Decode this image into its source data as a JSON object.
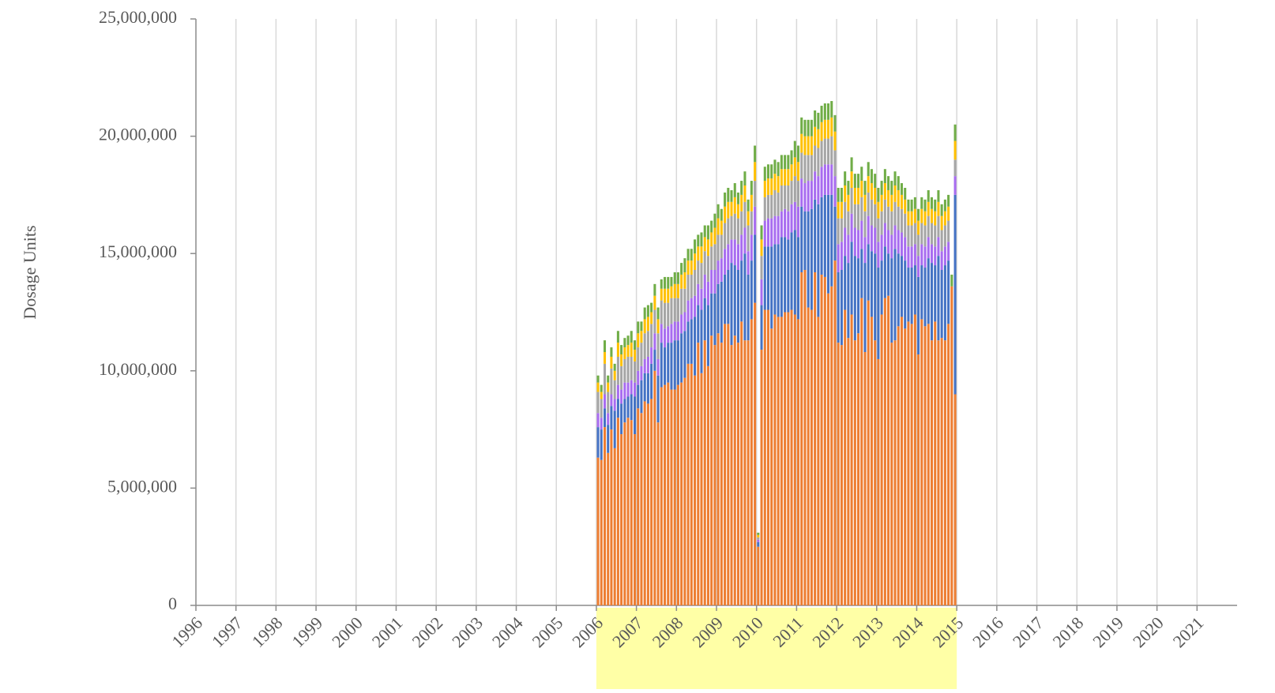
{
  "chart_data": {
    "type": "stacked_bar",
    "y_label": "Dosage Units",
    "xlim": [
      1996,
      2022
    ],
    "xticks": [
      1996,
      1997,
      1998,
      1999,
      2000,
      2001,
      2002,
      2003,
      2004,
      2005,
      2006,
      2007,
      2008,
      2009,
      2010,
      2011,
      2012,
      2013,
      2014,
      2015,
      2016,
      2017,
      2018,
      2019,
      2020,
      2021
    ],
    "ylim": [
      0,
      25000000
    ],
    "yticks": [
      0,
      {
        "value": 5000000,
        "label": "5,000,000"
      },
      {
        "value": 10000000,
        "label": "10,000,000"
      },
      {
        "value": 15000000,
        "label": "15,000,000"
      },
      {
        "value": 20000000,
        "label": "20,000,000"
      },
      {
        "value": 25000000,
        "label": "25,000,000"
      }
    ],
    "grid": true,
    "highlight_range": [
      2006,
      2015
    ],
    "highlight_color": "#ffffa6",
    "x": [
      2006,
      2006.083,
      2006.167,
      2006.25,
      2006.333,
      2006.417,
      2006.5,
      2006.583,
      2006.667,
      2006.75,
      2006.833,
      2006.917,
      2007,
      2007.083,
      2007.167,
      2007.25,
      2007.333,
      2007.417,
      2007.5,
      2007.583,
      2007.667,
      2007.75,
      2007.833,
      2007.917,
      2008,
      2008.083,
      2008.167,
      2008.25,
      2008.333,
      2008.417,
      2008.5,
      2008.583,
      2008.667,
      2008.75,
      2008.833,
      2008.917,
      2009,
      2009.083,
      2009.167,
      2009.25,
      2009.333,
      2009.417,
      2009.5,
      2009.583,
      2009.667,
      2009.75,
      2009.833,
      2009.917,
      2010,
      2010.083,
      2010.167,
      2010.25,
      2010.333,
      2010.417,
      2010.5,
      2010.583,
      2010.667,
      2010.75,
      2010.833,
      2010.917,
      2011,
      2011.083,
      2011.167,
      2011.25,
      2011.333,
      2011.417,
      2011.5,
      2011.583,
      2011.667,
      2011.75,
      2011.833,
      2011.917,
      2012,
      2012.083,
      2012.167,
      2012.25,
      2012.333,
      2012.417,
      2012.5,
      2012.583,
      2012.667,
      2012.75,
      2012.833,
      2012.917,
      2013,
      2013.083,
      2013.167,
      2013.25,
      2013.333,
      2013.417,
      2013.5,
      2013.583,
      2013.667,
      2013.75,
      2013.833,
      2013.917,
      2014,
      2014.083,
      2014.167,
      2014.25,
      2014.333,
      2014.417,
      2014.5,
      2014.583,
      2014.667,
      2014.75,
      2014.833,
      2014.917
    ],
    "series": [
      {
        "color": "#ed7d31",
        "values": [
          6300000,
          6200000,
          7600000,
          6500000,
          7500000,
          6700000,
          8000000,
          7300000,
          7800000,
          8000000,
          7900000,
          7300000,
          8400000,
          8200000,
          8700000,
          8600000,
          8800000,
          10000000,
          7800000,
          9300000,
          9400000,
          9500000,
          9200000,
          9200000,
          9400000,
          9500000,
          9700000,
          10300000,
          10300000,
          9800000,
          11200000,
          9900000,
          11300000,
          10200000,
          11500000,
          11100000,
          11600000,
          11200000,
          12000000,
          12000000,
          11100000,
          11500000,
          11200000,
          12100000,
          11300000,
          11300000,
          12200000,
          12900000,
          2500000,
          10900000,
          12600000,
          12600000,
          11800000,
          12400000,
          12300000,
          12300000,
          12500000,
          12500000,
          12600000,
          12400000,
          12200000,
          14200000,
          14300000,
          12700000,
          12600000,
          14200000,
          12300000,
          14100000,
          14000000,
          13300000,
          13600000,
          14700000,
          11200000,
          11100000,
          12600000,
          11400000,
          12400000,
          11300000,
          11600000,
          13100000,
          10800000,
          13000000,
          12300000,
          11300000,
          10500000,
          12400000,
          13100000,
          13200000,
          11200000,
          11300000,
          11900000,
          12300000,
          11800000,
          12100000,
          12000000,
          12400000,
          10700000,
          12200000,
          11900000,
          12000000,
          11300000,
          12100000,
          11300000,
          11400000,
          11300000,
          12000000,
          13600000,
          9000000
        ]
      },
      {
        "color": "#4472c4",
        "values": [
          1300000,
          1300000,
          800000,
          1200000,
          1000000,
          1600000,
          800000,
          1300000,
          1000000,
          900000,
          1100000,
          1600000,
          1000000,
          1400000,
          1200000,
          1300000,
          1500000,
          900000,
          2000000,
          1900000,
          1600000,
          1700000,
          2000000,
          2100000,
          1900000,
          2100000,
          2000000,
          1800000,
          1900000,
          2500000,
          1600000,
          2700000,
          1800000,
          2600000,
          1800000,
          2200000,
          2100000,
          2600000,
          2100000,
          2300000,
          3500000,
          3000000,
          3100000,
          2600000,
          3700000,
          2800000,
          2500000,
          2900000,
          200000,
          1900000,
          2700000,
          2700000,
          3500000,
          3000000,
          3100000,
          3400000,
          3200000,
          3100000,
          3300000,
          3600000,
          3500000,
          2800000,
          2500000,
          4100000,
          4300000,
          3100000,
          4800000,
          3300000,
          3500000,
          4200000,
          3900000,
          2300000,
          3000000,
          3200000,
          2300000,
          3200000,
          3100000,
          3600000,
          3200000,
          2100000,
          3800000,
          2400000,
          2800000,
          3700000,
          3900000,
          2300000,
          2200000,
          1800000,
          3600000,
          3900000,
          3100000,
          2600000,
          2900000,
          2300000,
          2400000,
          2100000,
          3300000,
          2300000,
          2500000,
          2800000,
          3300000,
          2400000,
          3600000,
          2900000,
          3200000,
          2700000,
          0,
          8500000
        ]
      },
      {
        "color": "#a86cf0",
        "values": [
          600000,
          500000,
          600000,
          500000,
          500000,
          500000,
          600000,
          600000,
          700000,
          600000,
          600000,
          600000,
          600000,
          600000,
          600000,
          700000,
          700000,
          700000,
          700000,
          800000,
          800000,
          700000,
          800000,
          800000,
          800000,
          800000,
          800000,
          900000,
          900000,
          900000,
          900000,
          900000,
          1000000,
          1000000,
          1000000,
          1000000,
          1000000,
          1000000,
          1100000,
          1100000,
          1000000,
          1100000,
          1100000,
          1100000,
          1100000,
          1000000,
          1100000,
          1200000,
          100000,
          1100000,
          1100000,
          1200000,
          1200000,
          1200000,
          1200000,
          1100000,
          1200000,
          1200000,
          1200000,
          1200000,
          1300000,
          1200000,
          1200000,
          1300000,
          1200000,
          1200000,
          1200000,
          1300000,
          1300000,
          1300000,
          1300000,
          1300000,
          1200000,
          1200000,
          1200000,
          1200000,
          1200000,
          1200000,
          1200000,
          1200000,
          1100000,
          1200000,
          1100000,
          1100000,
          1100000,
          1100000,
          1000000,
          1000000,
          1000000,
          1000000,
          1000000,
          1000000,
          1000000,
          900000,
          900000,
          900000,
          900000,
          900000,
          900000,
          900000,
          800000,
          800000,
          800000,
          800000,
          800000,
          800000,
          0,
          800000
        ]
      },
      {
        "color": "#a5a5a5",
        "values": [
          900000,
          800000,
          1300000,
          900000,
          1100000,
          800000,
          1200000,
          1000000,
          1000000,
          1100000,
          1000000,
          900000,
          1000000,
          1000000,
          1100000,
          1100000,
          1000000,
          1000000,
          1100000,
          1000000,
          1100000,
          1000000,
          1100000,
          1000000,
          1000000,
          1100000,
          1000000,
          1100000,
          1000000,
          1100000,
          1000000,
          1100000,
          1000000,
          1100000,
          1000000,
          1100000,
          1100000,
          1000000,
          1100000,
          1100000,
          1000000,
          1100000,
          1100000,
          1000000,
          1100000,
          1100000,
          1000000,
          1100000,
          100000,
          1000000,
          1000000,
          1000000,
          1000000,
          1100000,
          1000000,
          1100000,
          1000000,
          1100000,
          1000000,
          1100000,
          1100000,
          1100000,
          1200000,
          1100000,
          1100000,
          1100000,
          1200000,
          1100000,
          1100000,
          1100000,
          1200000,
          1100000,
          1100000,
          1000000,
          1100000,
          1000000,
          1100000,
          1000000,
          1100000,
          1000000,
          1100000,
          1000000,
          1100000,
          1000000,
          1000000,
          1000000,
          1000000,
          1000000,
          1000000,
          1000000,
          1000000,
          1000000,
          1000000,
          900000,
          900000,
          900000,
          900000,
          900000,
          900000,
          900000,
          900000,
          900000,
          900000,
          900000,
          900000,
          900000,
          0,
          700000
        ]
      },
      {
        "color": "#ffc000",
        "values": [
          400000,
          300000,
          500000,
          400000,
          500000,
          400000,
          600000,
          500000,
          500000,
          500000,
          600000,
          500000,
          600000,
          500000,
          600000,
          600000,
          500000,
          600000,
          600000,
          500000,
          600000,
          600000,
          500000,
          600000,
          600000,
          600000,
          700000,
          600000,
          600000,
          700000,
          600000,
          700000,
          600000,
          700000,
          600000,
          700000,
          700000,
          600000,
          700000,
          700000,
          600000,
          700000,
          600000,
          700000,
          700000,
          600000,
          700000,
          800000,
          100000,
          700000,
          700000,
          700000,
          700000,
          700000,
          700000,
          700000,
          700000,
          700000,
          700000,
          800000,
          800000,
          800000,
          800000,
          800000,
          800000,
          800000,
          800000,
          800000,
          800000,
          800000,
          800000,
          800000,
          700000,
          700000,
          700000,
          700000,
          700000,
          700000,
          700000,
          700000,
          700000,
          700000,
          700000,
          700000,
          700000,
          700000,
          700000,
          700000,
          700000,
          700000,
          700000,
          600000,
          600000,
          600000,
          600000,
          600000,
          600000,
          600000,
          600000,
          600000,
          600000,
          600000,
          600000,
          600000,
          600000,
          600000,
          0,
          800000
        ]
      },
      {
        "color": "#70ad47",
        "values": [
          300000,
          300000,
          500000,
          300000,
          400000,
          300000,
          500000,
          400000,
          400000,
          400000,
          500000,
          400000,
          500000,
          400000,
          500000,
          500000,
          400000,
          500000,
          500000,
          400000,
          500000,
          500000,
          400000,
          500000,
          500000,
          500000,
          600000,
          500000,
          500000,
          600000,
          500000,
          600000,
          500000,
          600000,
          500000,
          600000,
          600000,
          500000,
          600000,
          600000,
          500000,
          600000,
          500000,
          600000,
          600000,
          500000,
          600000,
          700000,
          100000,
          600000,
          600000,
          600000,
          600000,
          600000,
          600000,
          600000,
          600000,
          600000,
          600000,
          700000,
          700000,
          700000,
          700000,
          700000,
          700000,
          700000,
          700000,
          700000,
          700000,
          700000,
          700000,
          700000,
          600000,
          600000,
          600000,
          600000,
          600000,
          600000,
          600000,
          600000,
          600000,
          600000,
          600000,
          600000,
          600000,
          600000,
          600000,
          600000,
          600000,
          600000,
          600000,
          500000,
          500000,
          500000,
          500000,
          500000,
          500000,
          500000,
          500000,
          500000,
          500000,
          500000,
          500000,
          500000,
          500000,
          500000,
          500000,
          700000
        ]
      }
    ]
  }
}
